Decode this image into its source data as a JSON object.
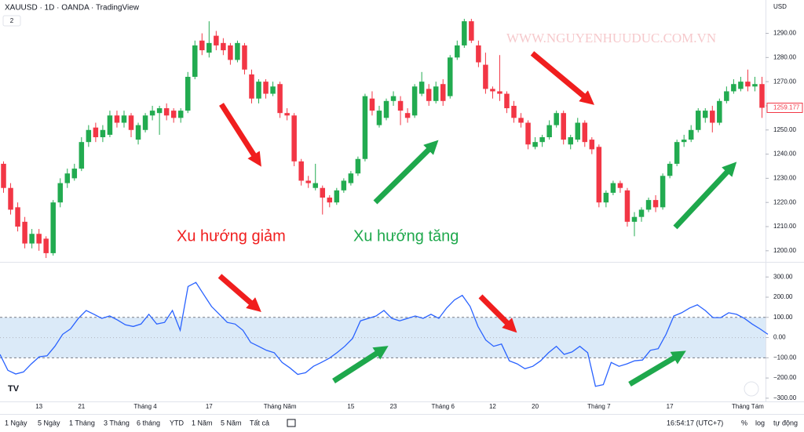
{
  "header": {
    "symbol": "XAUUSD · 1D · OANDA · TradingView",
    "badge": "2",
    "currency": "USD"
  },
  "toolbar": {
    "ranges": [
      "1 Ngày",
      "5 Ngày",
      "1 Tháng",
      "3 Tháng",
      "6 tháng",
      "YTD",
      "1 Năm",
      "5 Năm",
      "Tất cả"
    ],
    "clock": "16:54:17 (UTC+7)",
    "percent": "%",
    "log": "log",
    "auto": "tự động"
  },
  "chart_data": [
    {
      "type": "candlestick",
      "watermark": "WWW.NGUYENHUUDUC.COM.VN",
      "annotations": [
        {
          "text": "Xu hướng giảm",
          "color": "#f01e1e"
        },
        {
          "text": "Xu hướng tăng",
          "color": "#1ea84c"
        }
      ],
      "up_color": "#22ab50",
      "down_color": "#f23645",
      "last_price_label": "1259.177",
      "ylim": [
        1195.4,
        1303.8
      ],
      "yticks": [
        {
          "value": 1200,
          "label": "1200.00"
        },
        {
          "value": 1210,
          "label": "1210.00"
        },
        {
          "value": 1220,
          "label": "1220.00"
        },
        {
          "value": 1230,
          "label": "1230.00"
        },
        {
          "value": 1240,
          "label": "1240.00"
        },
        {
          "value": 1250,
          "label": "1250.00"
        },
        {
          "value": 1260,
          "label": "1260.00"
        },
        {
          "value": 1270,
          "label": "1270.00"
        },
        {
          "value": 1280,
          "label": "1280.00"
        },
        {
          "value": 1290,
          "label": "1290.00"
        }
      ],
      "categories": [
        null,
        null,
        null,
        null,
        null,
        "13",
        null,
        null,
        null,
        null,
        null,
        "21",
        null,
        null,
        null,
        null,
        null,
        null,
        null,
        null,
        "Tháng 4",
        null,
        null,
        null,
        null,
        null,
        null,
        null,
        null,
        "17",
        null,
        null,
        null,
        null,
        null,
        null,
        null,
        null,
        null,
        "Tháng Năm",
        null,
        null,
        null,
        null,
        null,
        null,
        null,
        null,
        null,
        "15",
        null,
        null,
        null,
        null,
        null,
        "23",
        null,
        null,
        null,
        null,
        null,
        null,
        "Tháng 6",
        null,
        null,
        null,
        null,
        null,
        null,
        "12",
        null,
        null,
        null,
        null,
        null,
        "20",
        null,
        null,
        null,
        null,
        null,
        null,
        null,
        null,
        "Tháng 7",
        null,
        null,
        null,
        null,
        null,
        null,
        null,
        null,
        null,
        "17",
        null,
        null,
        null,
        null,
        null,
        null,
        null,
        null,
        null,
        null,
        "Tháng Tám",
        null,
        null
      ],
      "ohlc": [
        [
          1236,
          1237,
          1224,
          1226
        ],
        [
          1226,
          1228,
          1215,
          1217
        ],
        [
          1218,
          1220,
          1208,
          1210
        ],
        [
          1212,
          1214,
          1201,
          1203
        ],
        [
          1203,
          1209,
          1201,
          1207
        ],
        [
          1207,
          1209,
          1200,
          1203
        ],
        [
          1205,
          1206,
          1197,
          1199
        ],
        [
          1199,
          1221,
          1198,
          1220
        ],
        [
          1220,
          1230,
          1218,
          1228
        ],
        [
          1228,
          1234,
          1226,
          1232
        ],
        [
          1230,
          1236,
          1229,
          1234
        ],
        [
          1234,
          1247,
          1233,
          1245
        ],
        [
          1245,
          1252,
          1243,
          1250
        ],
        [
          1251,
          1253,
          1245,
          1247
        ],
        [
          1247,
          1252,
          1245,
          1250
        ],
        [
          1248,
          1258,
          1247,
          1256
        ],
        [
          1256,
          1258,
          1251,
          1253
        ],
        [
          1253,
          1258,
          1251,
          1256
        ],
        [
          1256,
          1257,
          1247,
          1250
        ],
        [
          1246,
          1253,
          1244,
          1252
        ],
        [
          1250,
          1257,
          1249,
          1256
        ],
        [
          1256,
          1260,
          1254,
          1258
        ],
        [
          1257,
          1260,
          1248,
          1259
        ],
        [
          1259,
          1261,
          1254,
          1256
        ],
        [
          1258,
          1259,
          1253,
          1255
        ],
        [
          1255,
          1259,
          1253,
          1258
        ],
        [
          1258,
          1274,
          1257,
          1272
        ],
        [
          1272,
          1287,
          1271,
          1285
        ],
        [
          1287,
          1290,
          1281,
          1283
        ],
        [
          1282,
          1295,
          1280,
          1286
        ],
        [
          1289,
          1291,
          1283,
          1285
        ],
        [
          1286,
          1288,
          1281,
          1283
        ],
        [
          1285,
          1286,
          1277,
          1279
        ],
        [
          1279,
          1287,
          1278,
          1286
        ],
        [
          1285,
          1286,
          1273,
          1275
        ],
        [
          1273,
          1275,
          1261,
          1263
        ],
        [
          1263,
          1271,
          1261,
          1270
        ],
        [
          1270,
          1271,
          1263,
          1265
        ],
        [
          1265,
          1270,
          1264,
          1268
        ],
        [
          1269,
          1270,
          1255,
          1257
        ],
        [
          1257,
          1259,
          1254,
          1256
        ],
        [
          1256,
          1257,
          1235,
          1237
        ],
        [
          1237,
          1238,
          1227,
          1229
        ],
        [
          1229,
          1231,
          1226,
          1228
        ],
        [
          1226,
          1236,
          1225,
          1228
        ],
        [
          1226,
          1227,
          1215,
          1222
        ],
        [
          1222,
          1223,
          1218,
          1220
        ],
        [
          1220,
          1226,
          1219,
          1225
        ],
        [
          1225,
          1230,
          1224,
          1229
        ],
        [
          1228,
          1233,
          1227,
          1232
        ],
        [
          1232,
          1239,
          1231,
          1238
        ],
        [
          1238,
          1265,
          1237,
          1264
        ],
        [
          1263,
          1266,
          1256,
          1258
        ],
        [
          1252,
          1260,
          1251,
          1258
        ],
        [
          1255,
          1263,
          1254,
          1262
        ],
        [
          1262,
          1266,
          1260,
          1264
        ],
        [
          1262,
          1264,
          1252,
          1258
        ],
        [
          1257,
          1259,
          1253,
          1255
        ],
        [
          1256,
          1269,
          1255,
          1268
        ],
        [
          1265,
          1274,
          1264,
          1270
        ],
        [
          1267,
          1269,
          1260,
          1262
        ],
        [
          1262,
          1270,
          1261,
          1268
        ],
        [
          1269,
          1271,
          1260,
          1262
        ],
        [
          1264,
          1281,
          1263,
          1280
        ],
        [
          1280,
          1287,
          1279,
          1285
        ],
        [
          1285,
          1296,
          1284,
          1295
        ],
        [
          1295,
          1296,
          1286,
          1287
        ],
        [
          1285,
          1287,
          1276,
          1278
        ],
        [
          1277,
          1282,
          1265,
          1267
        ],
        [
          1267,
          1268,
          1263,
          1266
        ],
        [
          1266,
          1281,
          1262,
          1265
        ],
        [
          1265,
          1266,
          1257,
          1259
        ],
        [
          1260,
          1262,
          1253,
          1255
        ],
        [
          1255,
          1257,
          1251,
          1253
        ],
        [
          1253,
          1254,
          1242,
          1244
        ],
        [
          1243,
          1247,
          1242,
          1245
        ],
        [
          1245,
          1248,
          1243,
          1247
        ],
        [
          1247,
          1254,
          1246,
          1252
        ],
        [
          1252,
          1258,
          1251,
          1257
        ],
        [
          1257,
          1258,
          1244,
          1246
        ],
        [
          1244,
          1248,
          1242,
          1247
        ],
        [
          1246,
          1255,
          1245,
          1253
        ],
        [
          1253,
          1254,
          1243,
          1245
        ],
        [
          1246,
          1247,
          1240,
          1242
        ],
        [
          1243,
          1244,
          1218,
          1220
        ],
        [
          1220,
          1225,
          1218,
          1224
        ],
        [
          1224,
          1229,
          1223,
          1228
        ],
        [
          1228,
          1229,
          1224,
          1226
        ],
        [
          1225,
          1226,
          1210,
          1212
        ],
        [
          1212,
          1216,
          1206,
          1214
        ],
        [
          1214,
          1218,
          1212,
          1217
        ],
        [
          1217,
          1222,
          1216,
          1221
        ],
        [
          1221,
          1223,
          1216,
          1218
        ],
        [
          1218,
          1232,
          1217,
          1231
        ],
        [
          1231,
          1237,
          1230,
          1236
        ],
        [
          1236,
          1246,
          1235,
          1245
        ],
        [
          1245,
          1248,
          1243,
          1246
        ],
        [
          1246,
          1252,
          1245,
          1250
        ],
        [
          1250,
          1259,
          1249,
          1258
        ],
        [
          1255,
          1259,
          1253,
          1258
        ],
        [
          1258,
          1260,
          1249,
          1253
        ],
        [
          1253,
          1263,
          1252,
          1262
        ],
        [
          1262,
          1268,
          1261,
          1266
        ],
        [
          1266,
          1271,
          1265,
          1269
        ],
        [
          1267,
          1272,
          1266,
          1270
        ],
        [
          1270,
          1275,
          1266,
          1268
        ],
        [
          1268,
          1272,
          1266,
          1269
        ],
        [
          1269,
          1272,
          1255,
          1259.177
        ]
      ]
    },
    {
      "type": "line",
      "color": "#2962ff",
      "band": [
        -100,
        100
      ],
      "band_color": "#dbeaf8",
      "ylim": [
        -316,
        367
      ],
      "yticks": [
        {
          "value": 300,
          "label": "300.00"
        },
        {
          "value": 200,
          "label": "200.00"
        },
        {
          "value": 100,
          "label": "100.00"
        },
        {
          "value": 0,
          "label": "0.00"
        },
        {
          "value": -100,
          "label": "−100.00"
        },
        {
          "value": -200,
          "label": "−200.00"
        },
        {
          "value": -300,
          "label": "−300.00"
        }
      ],
      "values": [
        -83,
        -162,
        -180,
        -170,
        -130,
        -95,
        -90,
        -43,
        16,
        43,
        95,
        134,
        115,
        95,
        107,
        87,
        63,
        55,
        67,
        115,
        67,
        75,
        134,
        36,
        253,
        273,
        213,
        154,
        115,
        75,
        67,
        36,
        -24,
        -43,
        -63,
        -75,
        -123,
        -150,
        -182,
        -174,
        -142,
        -123,
        -103,
        -75,
        -43,
        -4,
        83,
        95,
        107,
        134,
        95,
        83,
        95,
        107,
        95,
        115,
        95,
        146,
        186,
        209,
        154,
        55,
        -12,
        -43,
        -32,
        -115,
        -130,
        -154,
        -142,
        -115,
        -75,
        -43,
        -83,
        -71,
        -43,
        -75,
        -241,
        -233,
        -123,
        -142,
        -130,
        -115,
        -111,
        -63,
        -55,
        16,
        107,
        123,
        146,
        162,
        134,
        99,
        99,
        123,
        115,
        95,
        67,
        43,
        16
      ]
    }
  ]
}
